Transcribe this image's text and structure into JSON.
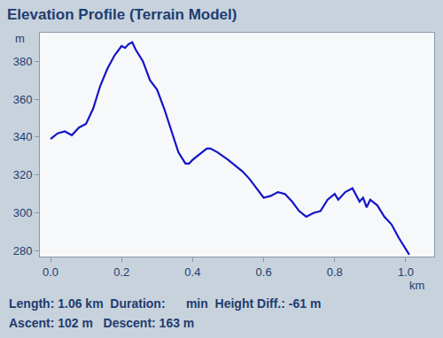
{
  "chart_data": {
    "type": "line",
    "title": "Elevation Profile (Terrain Model)",
    "x_label": "km",
    "y_label": "m",
    "footer": [
      "Length: 1.06 km  Duration:      min  Height Diff.: -61 m",
      "Ascent: 102 m   Descent: 163 m"
    ],
    "x": [
      0.0,
      0.02,
      0.04,
      0.06,
      0.08,
      0.1,
      0.12,
      0.14,
      0.16,
      0.18,
      0.2,
      0.21,
      0.22,
      0.23,
      0.24,
      0.26,
      0.28,
      0.3,
      0.32,
      0.34,
      0.36,
      0.38,
      0.39,
      0.4,
      0.42,
      0.44,
      0.45,
      0.47,
      0.5,
      0.52,
      0.54,
      0.56,
      0.58,
      0.6,
      0.62,
      0.64,
      0.66,
      0.68,
      0.7,
      0.72,
      0.74,
      0.76,
      0.78,
      0.8,
      0.81,
      0.83,
      0.85,
      0.87,
      0.88,
      0.89,
      0.9,
      0.92,
      0.94,
      0.96,
      0.98,
      1.0,
      1.01
    ],
    "values": [
      339,
      342,
      343,
      341,
      345,
      347,
      355,
      367,
      376,
      383,
      388,
      387,
      389,
      390,
      386,
      380,
      370,
      365,
      355,
      343,
      332,
      326,
      326,
      328,
      331,
      334,
      334,
      332,
      328,
      325,
      322,
      318,
      313,
      308,
      309,
      311,
      310,
      306,
      301,
      298,
      300,
      301,
      307,
      310,
      307,
      311,
      313,
      306,
      308,
      303,
      307,
      304,
      298,
      294,
      287,
      281,
      278
    ],
    "color": "#1414c8",
    "xlim": [
      -0.03,
      1.08
    ],
    "xticks": [
      {
        "value": 0,
        "label": "0.0"
      },
      0.2,
      0.4,
      0.6,
      0.8,
      {
        "value": 1,
        "label": "1.0"
      }
    ],
    "ylim": [
      277,
      395
    ],
    "yticks": [
      280,
      300,
      320,
      340,
      360,
      380
    ],
    "grid": false
  }
}
